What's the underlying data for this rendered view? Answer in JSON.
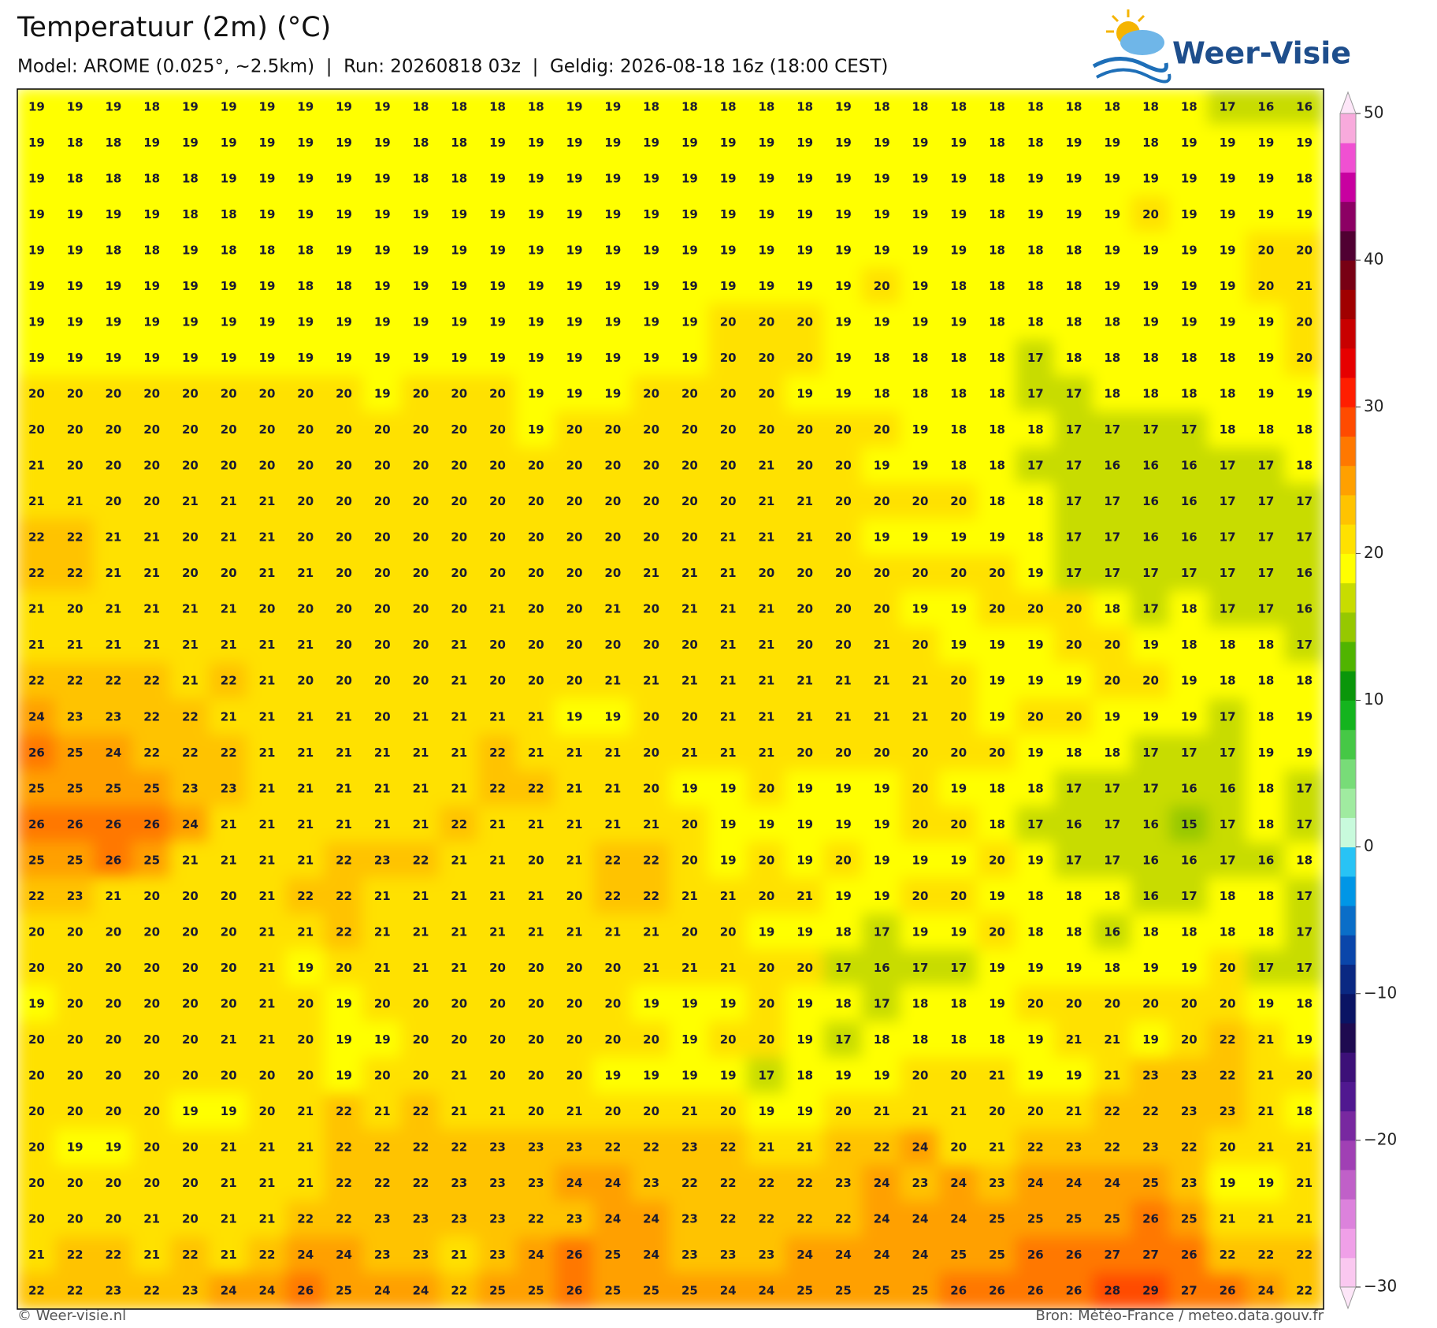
{
  "map": {
    "title": "Temperatuur (2m) (°C)",
    "subtitle": "Model: AROME (0.025°, ~2.5km)  |  Run: 20260818 03z  |  Geldig: 2026-08-18 16z (18:00 CEST)",
    "logo": "Weer-Visie",
    "footer_left": "© Weer-visie.nl",
    "footer_right": "Bron: Météo-France / meteo.data.gouv.fr",
    "grid": [
      [
        19,
        19,
        19,
        18,
        19,
        19,
        19,
        19,
        19,
        19,
        18,
        18,
        18,
        18,
        19,
        19,
        18,
        18,
        18,
        18,
        18,
        19,
        18,
        18,
        18,
        18,
        18,
        18,
        18,
        18,
        18,
        17,
        16,
        16
      ],
      [
        19,
        18,
        18,
        19,
        19,
        19,
        19,
        19,
        19,
        19,
        18,
        18,
        19,
        19,
        19,
        19,
        19,
        19,
        19,
        19,
        19,
        19,
        19,
        19,
        19,
        18,
        18,
        19,
        19,
        18,
        19,
        19,
        19,
        19
      ],
      [
        19,
        18,
        18,
        18,
        18,
        19,
        19,
        19,
        19,
        19,
        18,
        18,
        19,
        19,
        19,
        19,
        19,
        19,
        19,
        19,
        19,
        19,
        19,
        19,
        19,
        18,
        19,
        19,
        19,
        19,
        19,
        19,
        19,
        18
      ],
      [
        19,
        19,
        19,
        19,
        18,
        18,
        19,
        19,
        19,
        19,
        19,
        19,
        19,
        19,
        19,
        19,
        19,
        19,
        19,
        19,
        19,
        19,
        19,
        19,
        19,
        18,
        19,
        19,
        19,
        20,
        19,
        19,
        19,
        19
      ],
      [
        19,
        19,
        18,
        18,
        19,
        18,
        18,
        18,
        19,
        19,
        19,
        19,
        19,
        19,
        19,
        19,
        19,
        19,
        19,
        19,
        19,
        19,
        19,
        19,
        19,
        18,
        18,
        18,
        19,
        19,
        19,
        19,
        20,
        20
      ],
      [
        19,
        19,
        19,
        19,
        19,
        19,
        19,
        18,
        18,
        19,
        19,
        19,
        19,
        19,
        19,
        19,
        19,
        19,
        19,
        19,
        19,
        19,
        20,
        19,
        18,
        18,
        18,
        18,
        19,
        19,
        19,
        19,
        20,
        21
      ],
      [
        19,
        19,
        19,
        19,
        19,
        19,
        19,
        19,
        19,
        19,
        19,
        19,
        19,
        19,
        19,
        19,
        19,
        19,
        20,
        20,
        20,
        19,
        19,
        19,
        19,
        18,
        18,
        18,
        18,
        19,
        19,
        19,
        19,
        20
      ],
      [
        19,
        19,
        19,
        19,
        19,
        19,
        19,
        19,
        19,
        19,
        19,
        19,
        19,
        19,
        19,
        19,
        19,
        19,
        20,
        20,
        20,
        19,
        18,
        18,
        18,
        18,
        17,
        18,
        18,
        18,
        18,
        18,
        19,
        20
      ],
      [
        20,
        20,
        20,
        20,
        20,
        20,
        20,
        20,
        20,
        19,
        20,
        20,
        20,
        19,
        19,
        19,
        20,
        20,
        20,
        20,
        19,
        19,
        18,
        18,
        18,
        18,
        17,
        17,
        18,
        18,
        18,
        18,
        19,
        19
      ],
      [
        20,
        20,
        20,
        20,
        20,
        20,
        20,
        20,
        20,
        20,
        20,
        20,
        20,
        19,
        20,
        20,
        20,
        20,
        20,
        20,
        20,
        20,
        20,
        19,
        18,
        18,
        18,
        17,
        17,
        17,
        17,
        18,
        18,
        18
      ],
      [
        21,
        20,
        20,
        20,
        20,
        20,
        20,
        20,
        20,
        20,
        20,
        20,
        20,
        20,
        20,
        20,
        20,
        20,
        20,
        21,
        20,
        20,
        19,
        19,
        18,
        18,
        17,
        17,
        16,
        16,
        16,
        17,
        17,
        18
      ],
      [
        21,
        21,
        20,
        20,
        21,
        21,
        21,
        20,
        20,
        20,
        20,
        20,
        20,
        20,
        20,
        20,
        20,
        20,
        20,
        21,
        21,
        20,
        20,
        20,
        20,
        18,
        18,
        17,
        17,
        16,
        16,
        17,
        17,
        17
      ],
      [
        22,
        22,
        21,
        21,
        20,
        21,
        21,
        20,
        20,
        20,
        20,
        20,
        20,
        20,
        20,
        20,
        20,
        20,
        21,
        21,
        21,
        20,
        19,
        19,
        19,
        19,
        18,
        17,
        17,
        16,
        16,
        17,
        17,
        17
      ],
      [
        22,
        22,
        21,
        21,
        20,
        20,
        21,
        21,
        20,
        20,
        20,
        20,
        20,
        20,
        20,
        20,
        21,
        21,
        21,
        20,
        20,
        20,
        20,
        20,
        20,
        20,
        19,
        17,
        17,
        17,
        17,
        17,
        17,
        16
      ],
      [
        21,
        20,
        21,
        21,
        21,
        21,
        20,
        20,
        20,
        20,
        20,
        20,
        21,
        20,
        20,
        21,
        20,
        21,
        21,
        21,
        20,
        20,
        20,
        19,
        19,
        20,
        20,
        20,
        18,
        17,
        18,
        17,
        17,
        16
      ],
      [
        21,
        21,
        21,
        21,
        21,
        21,
        21,
        21,
        20,
        20,
        20,
        21,
        20,
        20,
        20,
        20,
        20,
        20,
        21,
        21,
        20,
        20,
        21,
        20,
        19,
        19,
        19,
        20,
        20,
        19,
        18,
        18,
        18,
        17
      ],
      [
        22,
        22,
        22,
        22,
        21,
        22,
        21,
        20,
        20,
        20,
        20,
        21,
        20,
        20,
        20,
        21,
        21,
        21,
        21,
        21,
        21,
        21,
        21,
        21,
        20,
        19,
        19,
        19,
        20,
        20,
        19,
        18,
        18,
        18
      ],
      [
        24,
        23,
        23,
        22,
        22,
        21,
        21,
        21,
        21,
        20,
        21,
        21,
        21,
        21,
        19,
        19,
        20,
        20,
        21,
        21,
        21,
        21,
        21,
        21,
        20,
        19,
        20,
        20,
        19,
        19,
        19,
        17,
        18,
        19
      ],
      [
        26,
        25,
        24,
        22,
        22,
        22,
        21,
        21,
        21,
        21,
        21,
        21,
        22,
        21,
        21,
        21,
        20,
        21,
        21,
        21,
        20,
        20,
        20,
        20,
        20,
        20,
        19,
        18,
        18,
        17,
        17,
        17,
        19,
        19
      ],
      [
        25,
        25,
        25,
        25,
        23,
        23,
        21,
        21,
        21,
        21,
        21,
        21,
        22,
        22,
        21,
        21,
        20,
        19,
        19,
        20,
        19,
        19,
        19,
        20,
        19,
        18,
        18,
        17,
        17,
        17,
        16,
        16,
        18,
        17
      ],
      [
        26,
        26,
        26,
        26,
        24,
        21,
        21,
        21,
        21,
        21,
        21,
        22,
        21,
        21,
        21,
        21,
        21,
        20,
        19,
        19,
        19,
        19,
        19,
        20,
        20,
        18,
        17,
        16,
        17,
        16,
        15,
        17,
        18,
        17
      ],
      [
        25,
        25,
        26,
        25,
        21,
        21,
        21,
        21,
        22,
        23,
        22,
        21,
        21,
        20,
        21,
        22,
        22,
        20,
        19,
        20,
        19,
        20,
        19,
        19,
        19,
        20,
        19,
        17,
        17,
        16,
        16,
        17,
        16,
        18
      ],
      [
        22,
        23,
        21,
        20,
        20,
        20,
        21,
        22,
        22,
        21,
        21,
        21,
        21,
        21,
        20,
        22,
        22,
        21,
        21,
        20,
        21,
        19,
        19,
        20,
        20,
        19,
        18,
        18,
        18,
        16,
        17,
        18,
        18,
        17
      ],
      [
        20,
        20,
        20,
        20,
        20,
        20,
        21,
        21,
        22,
        21,
        21,
        21,
        21,
        21,
        21,
        21,
        21,
        20,
        20,
        19,
        19,
        18,
        17,
        19,
        19,
        20,
        18,
        18,
        16,
        18,
        18,
        18,
        18,
        17
      ],
      [
        20,
        20,
        20,
        20,
        20,
        20,
        21,
        19,
        20,
        21,
        21,
        21,
        20,
        20,
        20,
        20,
        21,
        21,
        21,
        20,
        20,
        17,
        16,
        17,
        17,
        19,
        19,
        19,
        18,
        19,
        19,
        20,
        17,
        17
      ],
      [
        19,
        20,
        20,
        20,
        20,
        20,
        21,
        20,
        19,
        20,
        20,
        20,
        20,
        20,
        20,
        20,
        19,
        19,
        19,
        20,
        19,
        18,
        17,
        18,
        18,
        19,
        20,
        20,
        20,
        20,
        20,
        20,
        19,
        18
      ],
      [
        20,
        20,
        20,
        20,
        20,
        21,
        21,
        20,
        19,
        19,
        20,
        20,
        20,
        20,
        20,
        20,
        20,
        19,
        20,
        20,
        19,
        17,
        18,
        18,
        18,
        18,
        19,
        21,
        21,
        19,
        20,
        22,
        21,
        19
      ],
      [
        20,
        20,
        20,
        20,
        20,
        20,
        20,
        20,
        19,
        20,
        20,
        21,
        20,
        20,
        20,
        19,
        19,
        19,
        19,
        17,
        18,
        19,
        19,
        20,
        20,
        21,
        19,
        19,
        21,
        23,
        23,
        22,
        21,
        20
      ],
      [
        20,
        20,
        20,
        20,
        19,
        19,
        20,
        21,
        22,
        21,
        22,
        21,
        21,
        20,
        21,
        20,
        20,
        21,
        20,
        19,
        19,
        20,
        21,
        21,
        21,
        20,
        20,
        21,
        22,
        22,
        23,
        23,
        21,
        18
      ],
      [
        20,
        19,
        19,
        20,
        20,
        21,
        21,
        21,
        22,
        22,
        22,
        22,
        23,
        23,
        23,
        22,
        22,
        23,
        22,
        21,
        21,
        22,
        22,
        24,
        20,
        21,
        22,
        23,
        22,
        23,
        22,
        20,
        21,
        21
      ],
      [
        20,
        20,
        20,
        20,
        20,
        21,
        21,
        21,
        22,
        22,
        22,
        23,
        23,
        23,
        24,
        24,
        23,
        22,
        22,
        22,
        22,
        23,
        24,
        23,
        24,
        23,
        24,
        24,
        24,
        25,
        23,
        19,
        19,
        21
      ],
      [
        20,
        20,
        20,
        21,
        20,
        21,
        21,
        22,
        22,
        23,
        23,
        23,
        23,
        22,
        23,
        24,
        24,
        23,
        22,
        22,
        22,
        22,
        24,
        24,
        24,
        25,
        25,
        25,
        25,
        26,
        25,
        21,
        21,
        21
      ],
      [
        21,
        22,
        22,
        21,
        22,
        21,
        22,
        24,
        24,
        23,
        23,
        21,
        23,
        24,
        26,
        25,
        24,
        23,
        23,
        23,
        24,
        24,
        24,
        24,
        25,
        25,
        26,
        26,
        27,
        27,
        26,
        22,
        22,
        22
      ],
      [
        22,
        22,
        23,
        22,
        23,
        24,
        24,
        26,
        25,
        24,
        24,
        22,
        25,
        25,
        26,
        25,
        25,
        25,
        24,
        24,
        25,
        25,
        25,
        25,
        26,
        26,
        26,
        26,
        28,
        29,
        27,
        26,
        24,
        22
      ]
    ],
    "colorbar": {
      "lim": [
        -30,
        50
      ],
      "ticks": [
        50,
        40,
        30,
        20,
        10,
        0,
        {
          "value": -10,
          "label": "−10"
        },
        {
          "value": -20,
          "label": "−20"
        },
        {
          "value": -30,
          "label": "−30"
        }
      ],
      "colors": [
        "#fac8f0",
        "#f0a0e8",
        "#dc82dc",
        "#c060c8",
        "#a040b4",
        "#7828a0",
        "#501890",
        "#3c1078",
        "#1e0a50",
        "#0a1464",
        "#0a2882",
        "#0a46aa",
        "#0a6ec8",
        "#0096e6",
        "#28c3f5",
        "#c8fadc",
        "#a0eba0",
        "#78dc78",
        "#46c846",
        "#14b41e",
        "#0a960a",
        "#50b400",
        "#96c800",
        "#c8dc00",
        "#ffff00",
        "#ffe100",
        "#ffc300",
        "#ffa000",
        "#ff7800",
        "#ff4b00",
        "#ff1e00",
        "#e60000",
        "#c80000",
        "#a00000",
        "#780014",
        "#500032",
        "#8c0064",
        "#c800a0",
        "#f050d2",
        "#f8aadc"
      ]
    }
  }
}
